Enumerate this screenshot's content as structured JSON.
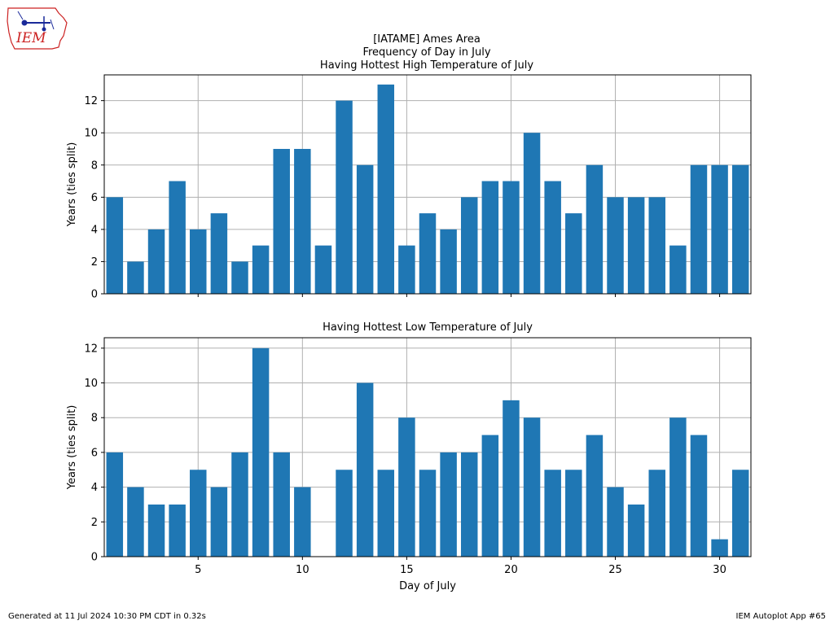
{
  "logo": {
    "text": "IEM"
  },
  "title": {
    "line1": "[IATAME] Ames Area",
    "line2": "Frequency of Day in July",
    "line3": "Having Hottest High Temperature of July"
  },
  "footer": {
    "generated": "Generated at 11 Jul 2024 10:30 PM CDT in 0.32s",
    "app": "IEM Autoplot App #65"
  },
  "colors": {
    "bar": "#1f77b4",
    "grid": "#b0b0b0",
    "logo_red": "#cc2222",
    "logo_blue": "#1a2a9a"
  },
  "chart_data": [
    {
      "type": "bar",
      "title": "Having Hottest High Temperature of July",
      "xlabel": "",
      "ylabel": "Years (ties split)",
      "x": [
        1,
        2,
        3,
        4,
        5,
        6,
        7,
        8,
        9,
        10,
        11,
        12,
        13,
        14,
        15,
        16,
        17,
        18,
        19,
        20,
        21,
        22,
        23,
        24,
        25,
        26,
        27,
        28,
        29,
        30,
        31
      ],
      "values": [
        6,
        2,
        4,
        7,
        4,
        5,
        2,
        3,
        9,
        9,
        3,
        12,
        8,
        13,
        3,
        5,
        4,
        6,
        7,
        7,
        10,
        7,
        5,
        8,
        6,
        6,
        6,
        3,
        8,
        8,
        8
      ],
      "xticks": [
        5,
        10,
        15,
        20,
        25,
        30
      ],
      "xtick_labels_visible": false,
      "yticks": [
        0,
        2,
        4,
        6,
        8,
        10,
        12
      ],
      "xlim": [
        0.5,
        31.5
      ],
      "ylim": [
        0,
        13.6
      ],
      "grid": true
    },
    {
      "type": "bar",
      "title": "Having Hottest Low Temperature of July",
      "xlabel": "Day of July",
      "ylabel": "Years (ties split)",
      "x": [
        1,
        2,
        3,
        4,
        5,
        6,
        7,
        8,
        9,
        10,
        11,
        12,
        13,
        14,
        15,
        16,
        17,
        18,
        19,
        20,
        21,
        22,
        23,
        24,
        25,
        26,
        27,
        28,
        29,
        30,
        31
      ],
      "values": [
        6,
        4,
        3,
        3,
        5,
        4,
        6,
        12,
        6,
        4,
        0,
        5,
        10,
        5,
        8,
        5,
        6,
        6,
        7,
        9,
        8,
        5,
        5,
        7,
        4,
        3,
        5,
        8,
        7,
        1,
        5
      ],
      "xticks": [
        5,
        10,
        15,
        20,
        25,
        30
      ],
      "xtick_labels_visible": true,
      "yticks": [
        0,
        2,
        4,
        6,
        8,
        10,
        12
      ],
      "xlim": [
        0.5,
        31.5
      ],
      "ylim": [
        0,
        12.6
      ],
      "grid": true
    }
  ]
}
